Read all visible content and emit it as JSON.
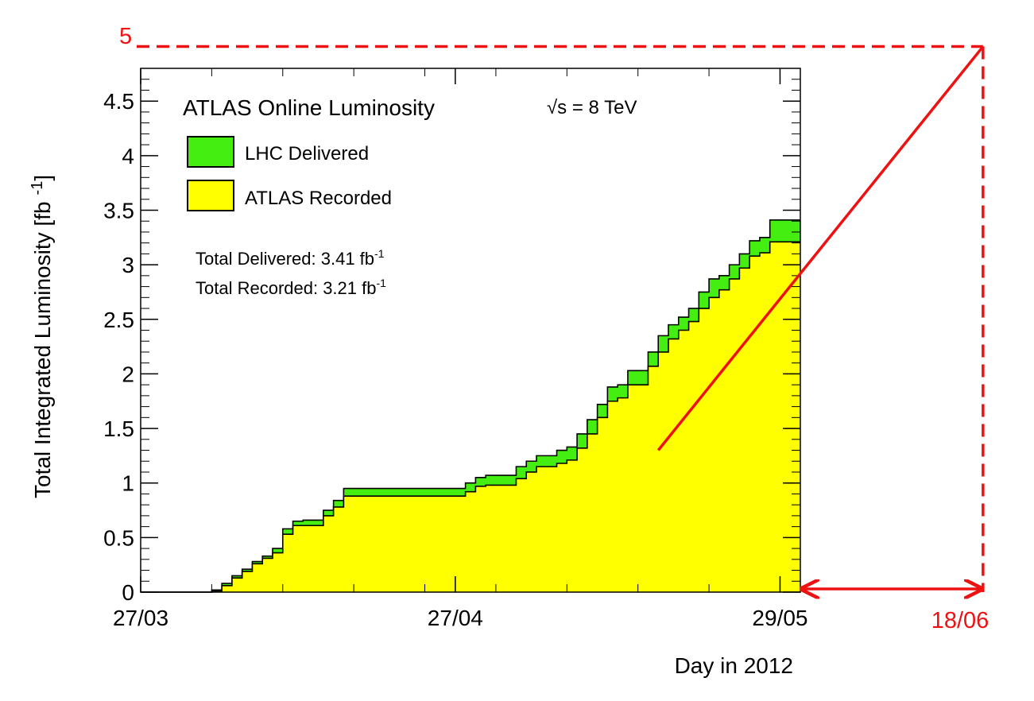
{
  "chart_data": {
    "type": "area",
    "title": "ATLAS Online Luminosity",
    "energy_label": "√s = 8 TeV",
    "energy_sqrt": "√",
    "energy_rest": "s = 8 TeV",
    "ylabel": "Total Integrated Luminosity [fb",
    "ylabel_sup": "-1",
    "ylabel_close": "]",
    "xlabel": "Day in 2012",
    "ylim": [
      0,
      4.8
    ],
    "y_ticks": [
      "0",
      "0.5",
      "1",
      "1.5",
      "2",
      "2.5",
      "3",
      "3.5",
      "4",
      "4.5"
    ],
    "x_axis_start": "2012-03-27",
    "x_axis_end": "2012-05-31",
    "x_ticks": [
      {
        "label": "27/03",
        "date": "2012-03-27"
      },
      {
        "label": "27/04",
        "date": "2012-04-27"
      },
      {
        "label": "29/05",
        "date": "2012-05-29"
      }
    ],
    "legend": [
      {
        "label": "LHC Delivered",
        "color": "#44ee11"
      },
      {
        "label": "ATLAS Recorded",
        "color": "#ffff00"
      }
    ],
    "totals": {
      "delivered_text": "Total Delivered: 3.41 fb",
      "recorded_text": "Total Recorded: 3.21 fb",
      "unit_sup": "-1"
    },
    "series": [
      {
        "name": "LHC Delivered",
        "color": "#44ee11",
        "dates": [
          "2012-03-27",
          "2012-04-03",
          "2012-04-04",
          "2012-04-05",
          "2012-04-06",
          "2012-04-07",
          "2012-04-08",
          "2012-04-09",
          "2012-04-10",
          "2012-04-11",
          "2012-04-12",
          "2012-04-14",
          "2012-04-15",
          "2012-04-16",
          "2012-04-17",
          "2012-04-18",
          "2012-04-28",
          "2012-04-29",
          "2012-04-30",
          "2012-05-01",
          "2012-05-03",
          "2012-05-04",
          "2012-05-05",
          "2012-05-06",
          "2012-05-07",
          "2012-05-08",
          "2012-05-09",
          "2012-05-10",
          "2012-05-11",
          "2012-05-12",
          "2012-05-13",
          "2012-05-14",
          "2012-05-16",
          "2012-05-17",
          "2012-05-18",
          "2012-05-19",
          "2012-05-20",
          "2012-05-21",
          "2012-05-22",
          "2012-05-23",
          "2012-05-24",
          "2012-05-25",
          "2012-05-26",
          "2012-05-27",
          "2012-05-28",
          "2012-05-29",
          "2012-05-31"
        ],
        "values": [
          0.0,
          0.02,
          0.08,
          0.15,
          0.21,
          0.28,
          0.33,
          0.4,
          0.58,
          0.65,
          0.66,
          0.75,
          0.84,
          0.95,
          0.95,
          0.95,
          1.0,
          1.05,
          1.07,
          1.07,
          1.15,
          1.2,
          1.25,
          1.25,
          1.3,
          1.33,
          1.45,
          1.58,
          1.72,
          1.88,
          1.9,
          2.03,
          2.2,
          2.35,
          2.45,
          2.52,
          2.6,
          2.75,
          2.87,
          2.9,
          3.0,
          3.1,
          3.22,
          3.25,
          3.41,
          3.41,
          3.41
        ]
      },
      {
        "name": "ATLAS Recorded",
        "color": "#ffff00",
        "dates": [
          "2012-03-27",
          "2012-04-03",
          "2012-04-04",
          "2012-04-05",
          "2012-04-06",
          "2012-04-07",
          "2012-04-08",
          "2012-04-09",
          "2012-04-10",
          "2012-04-11",
          "2012-04-12",
          "2012-04-14",
          "2012-04-15",
          "2012-04-16",
          "2012-04-17",
          "2012-04-18",
          "2012-04-28",
          "2012-04-29",
          "2012-04-30",
          "2012-05-01",
          "2012-05-03",
          "2012-05-04",
          "2012-05-05",
          "2012-05-06",
          "2012-05-07",
          "2012-05-08",
          "2012-05-09",
          "2012-05-10",
          "2012-05-11",
          "2012-05-12",
          "2012-05-13",
          "2012-05-14",
          "2012-05-16",
          "2012-05-17",
          "2012-05-18",
          "2012-05-19",
          "2012-05-20",
          "2012-05-21",
          "2012-05-22",
          "2012-05-23",
          "2012-05-24",
          "2012-05-25",
          "2012-05-26",
          "2012-05-27",
          "2012-05-28",
          "2012-05-29",
          "2012-05-31"
        ],
        "values": [
          0.0,
          0.01,
          0.06,
          0.13,
          0.19,
          0.26,
          0.31,
          0.36,
          0.53,
          0.61,
          0.61,
          0.7,
          0.78,
          0.88,
          0.88,
          0.88,
          0.92,
          0.97,
          0.98,
          0.98,
          1.04,
          1.1,
          1.15,
          1.15,
          1.18,
          1.21,
          1.32,
          1.45,
          1.6,
          1.75,
          1.78,
          1.9,
          2.07,
          2.2,
          2.32,
          2.4,
          2.48,
          2.6,
          2.7,
          2.77,
          2.87,
          2.97,
          3.08,
          3.11,
          3.21,
          3.21,
          3.21
        ]
      }
    ],
    "annotations": {
      "trend_line": {
        "start": {
          "date": "2012-05-17",
          "value": 1.3
        },
        "end": {
          "date": "2012-06-18",
          "value": 5
        }
      },
      "target_value_label": "5",
      "target_value": 5,
      "target_date_label": "18/06",
      "target_date": "2012-06-18",
      "color": "#ee1111"
    }
  }
}
